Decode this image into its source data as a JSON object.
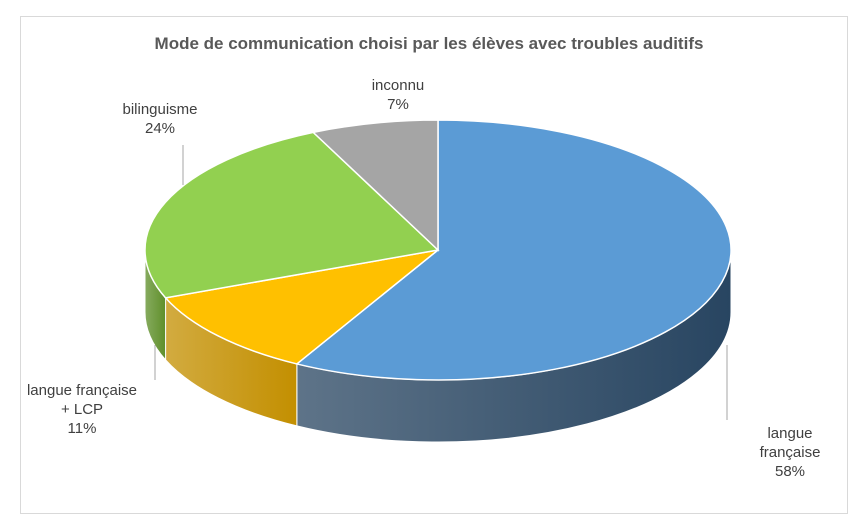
{
  "chart_data": {
    "type": "pie",
    "title": "Mode de communication choisi par les élèves avec troubles auditifs",
    "categories": [
      "langue française",
      "langue française + LCP",
      "bilinguisme",
      "inconnu"
    ],
    "values": [
      58,
      11,
      24,
      7
    ],
    "value_labels": [
      "58%",
      "11%",
      "24%",
      "7%"
    ],
    "colors": [
      "#5b9bd5",
      "#ffc000",
      "#92d050",
      "#a5a5a5"
    ],
    "side_colors": [
      "#284561",
      "#c38f00",
      "#5f8f2a",
      "#6f6f6f"
    ]
  }
}
